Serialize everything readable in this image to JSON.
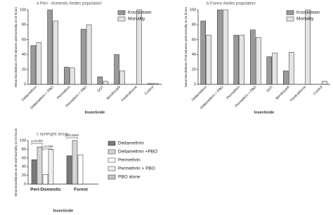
{
  "chart_data": [
    {
      "type": "bar",
      "title": "a Peri - domestic Aedes population",
      "x_label": "Insecticide",
      "y_label": "Mean knockdown of 60 minutes and mortality at 24 hours",
      "categories": [
        "Deltamethrin",
        "Deltamethrin + PBO",
        "Permethrin",
        "Permethrin + PBO",
        "DDT",
        "Bendiocarb",
        "Fenitrothione",
        "Control"
      ],
      "series": [
        {
          "name": "Knockdown",
          "color": "#9a9a9a",
          "values": [
            52,
            100,
            23,
            74,
            10,
            40,
            0,
            1
          ]
        },
        {
          "name": "Mortality",
          "color": "#e4e4e4",
          "values": [
            56,
            85,
            22,
            80,
            4,
            18,
            100,
            1
          ]
        }
      ],
      "ylim": [
        0,
        100
      ],
      "yticks": [
        0,
        20,
        40,
        60,
        80,
        100
      ],
      "legend": "top-right"
    },
    {
      "type": "bar",
      "title": "b Forest Aedes population",
      "x_label": "Insecticide",
      "y_label": "Mean knockdown of 60 minutes and mortality at 24 hours",
      "categories": [
        "Deltamethrin",
        "Deltamethrin + PBO",
        "Permethrin",
        "Permethrin + PBO",
        "DDT",
        "Bendiocarb",
        "Fenitrothione",
        "Control"
      ],
      "series": [
        {
          "name": "Knockdown",
          "color": "#9a9a9a",
          "values": [
            85,
            100,
            66,
            73,
            37,
            18,
            0,
            0
          ]
        },
        {
          "name": "Mortality",
          "color": "#e4e4e4",
          "values": [
            66,
            100,
            66,
            63,
            42,
            43,
            100,
            4
          ]
        }
      ],
      "ylim": [
        0,
        100
      ],
      "yticks": [
        0,
        20,
        40,
        60,
        80,
        100
      ],
      "legend": "top-right"
    },
    {
      "type": "bar",
      "title": "c synergist assay",
      "x_label": "Insecticide",
      "y_label": "Mean knockdown at 60 and mortality at 24 hours",
      "categories": [
        "Peri-Domestic",
        "Forest"
      ],
      "series": [
        {
          "name": "Deltamethrin",
          "color": "#7a7a7a",
          "values": [
            56,
            65
          ]
        },
        {
          "name": "Deltamethrin +PBO",
          "color": "#d6d6d6",
          "values": [
            85,
            100
          ]
        },
        {
          "name": "Permethrin",
          "color": "#ffffff",
          "values": [
            22,
            67
          ]
        },
        {
          "name": "Permethrin + PBO",
          "color": "#f0f0f0",
          "values": [
            80,
            null
          ]
        },
        {
          "name": "PBO alone",
          "color": "#c4c4c4",
          "values": [
            null,
            null
          ]
        }
      ],
      "annotations": [
        "p=0.003",
        "p=0.000",
        "p=0.0004"
      ],
      "ylim": [
        0,
        100
      ],
      "yticks": [
        0,
        20,
        40,
        60,
        80,
        100
      ],
      "legend": "right"
    }
  ]
}
